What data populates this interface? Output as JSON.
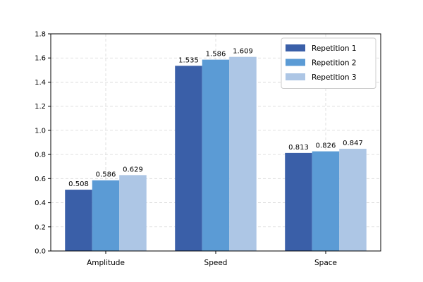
{
  "chart_data": {
    "type": "bar",
    "title": "",
    "xlabel": "",
    "ylabel": "",
    "categories": [
      "Amplitude",
      "Speed",
      "Space"
    ],
    "series": [
      {
        "name": "Repetition 1",
        "values": [
          0.508,
          1.535,
          0.813
        ],
        "color": "#3a5fa8"
      },
      {
        "name": "Repetition 2",
        "values": [
          0.586,
          1.586,
          0.826
        ],
        "color": "#5b9bd5"
      },
      {
        "name": "Repetition 3",
        "values": [
          0.629,
          1.609,
          0.847
        ],
        "color": "#adc6e5"
      }
    ],
    "data_labels": [
      [
        "0.508",
        "1.535",
        "0.813"
      ],
      [
        "0.586",
        "1.586",
        "0.826"
      ],
      [
        "0.629",
        "1.609",
        "0.847"
      ]
    ],
    "ylim": [
      0,
      1.8
    ],
    "yticks": [
      0.0,
      0.2,
      0.4,
      0.6,
      0.8,
      1.0,
      1.2,
      1.4,
      1.6,
      1.8
    ],
    "ytick_labels": [
      "0.0",
      "0.2",
      "0.4",
      "0.6",
      "0.8",
      "1.0",
      "1.2",
      "1.4",
      "1.6",
      "1.8"
    ],
    "grid": true,
    "legend_position": "top-right"
  }
}
